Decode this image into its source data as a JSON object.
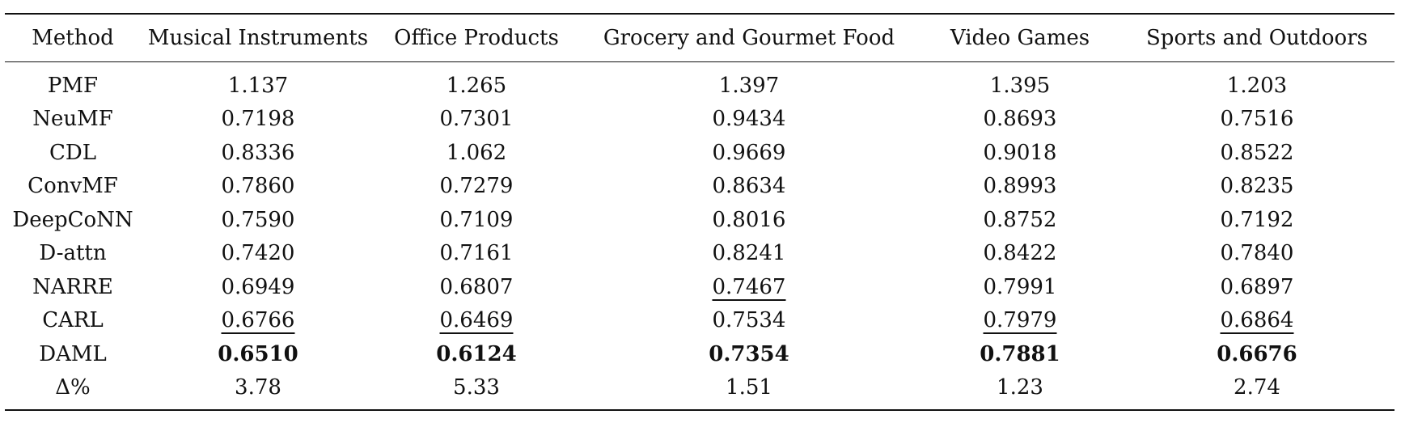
{
  "table": {
    "headers": [
      "Method",
      "Musical Instruments",
      "Office Products",
      "Grocery and Gourmet Food",
      "Video Games",
      "Sports and Outdoors"
    ],
    "rows": [
      {
        "method": "PMF",
        "values": [
          "1.137",
          "1.265",
          "1.397",
          "1.395",
          "1.203"
        ]
      },
      {
        "method": "NeuMF",
        "values": [
          "0.7198",
          "0.7301",
          "0.9434",
          "0.8693",
          "0.7516"
        ]
      },
      {
        "method": "CDL",
        "values": [
          "0.8336",
          "1.062",
          "0.9669",
          "0.9018",
          "0.8522"
        ]
      },
      {
        "method": "ConvMF",
        "values": [
          "0.7860",
          "0.7279",
          "0.8634",
          "0.8993",
          "0.8235"
        ]
      },
      {
        "method": "DeepCoNN",
        "values": [
          "0.7590",
          "0.7109",
          "0.8016",
          "0.8752",
          "0.7192"
        ]
      },
      {
        "method": "D-attn",
        "values": [
          "0.7420",
          "0.7161",
          "0.8241",
          "0.8422",
          "0.7840"
        ]
      },
      {
        "method": "NARRE",
        "values": [
          "0.6949",
          "0.6807",
          "0.7467",
          "0.7991",
          "0.6897"
        ]
      },
      {
        "method": "CARL",
        "values": [
          "0.6766",
          "0.6469",
          "0.7534",
          "0.7979",
          "0.6864"
        ]
      },
      {
        "method": "DAML",
        "values": [
          "0.6510",
          "0.6124",
          "0.7354",
          "0.7881",
          "0.6676"
        ]
      },
      {
        "method": "Δ%",
        "values": [
          "3.78",
          "5.33",
          "1.51",
          "1.23",
          "2.74"
        ]
      }
    ]
  }
}
